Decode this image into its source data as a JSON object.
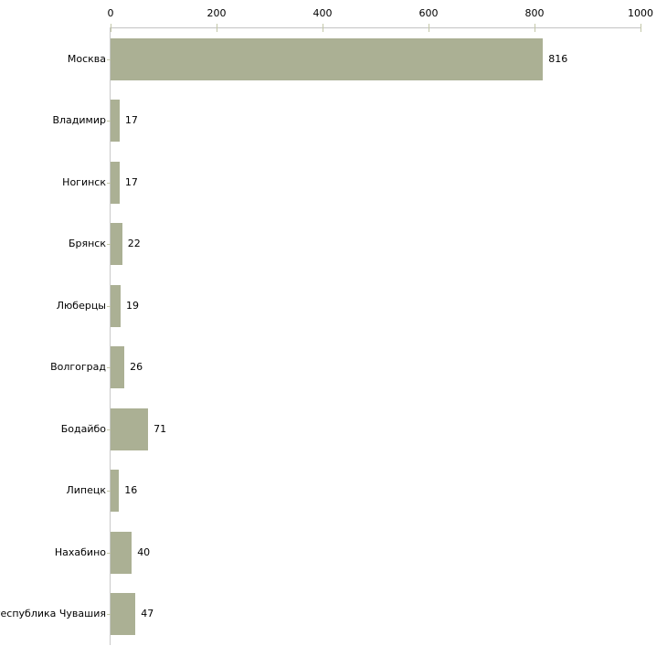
{
  "chart_data": {
    "type": "bar",
    "orientation": "horizontal",
    "title": "",
    "xlabel": "",
    "ylabel": "",
    "categories": [
      "Москва",
      "Владимир",
      "Ногинск",
      "Брянск",
      "Люберцы",
      "Волгоград",
      "Бодайбо",
      "Липецк",
      "Нахабино",
      "Республика Чувашия"
    ],
    "values": [
      816,
      17,
      17,
      22,
      19,
      26,
      71,
      16,
      40,
      47
    ],
    "x_ticks": [
      0,
      200,
      400,
      600,
      800,
      1000
    ],
    "xlim": [
      0,
      1000
    ],
    "axis_position": "top",
    "grid": false,
    "legend": false,
    "colors": {
      "bar_fill": "#abb094",
      "tick_mark": "#c3c7a8",
      "axis_line": "#c3c3c3",
      "label_text": "#000000",
      "background": "#ffffff"
    }
  }
}
